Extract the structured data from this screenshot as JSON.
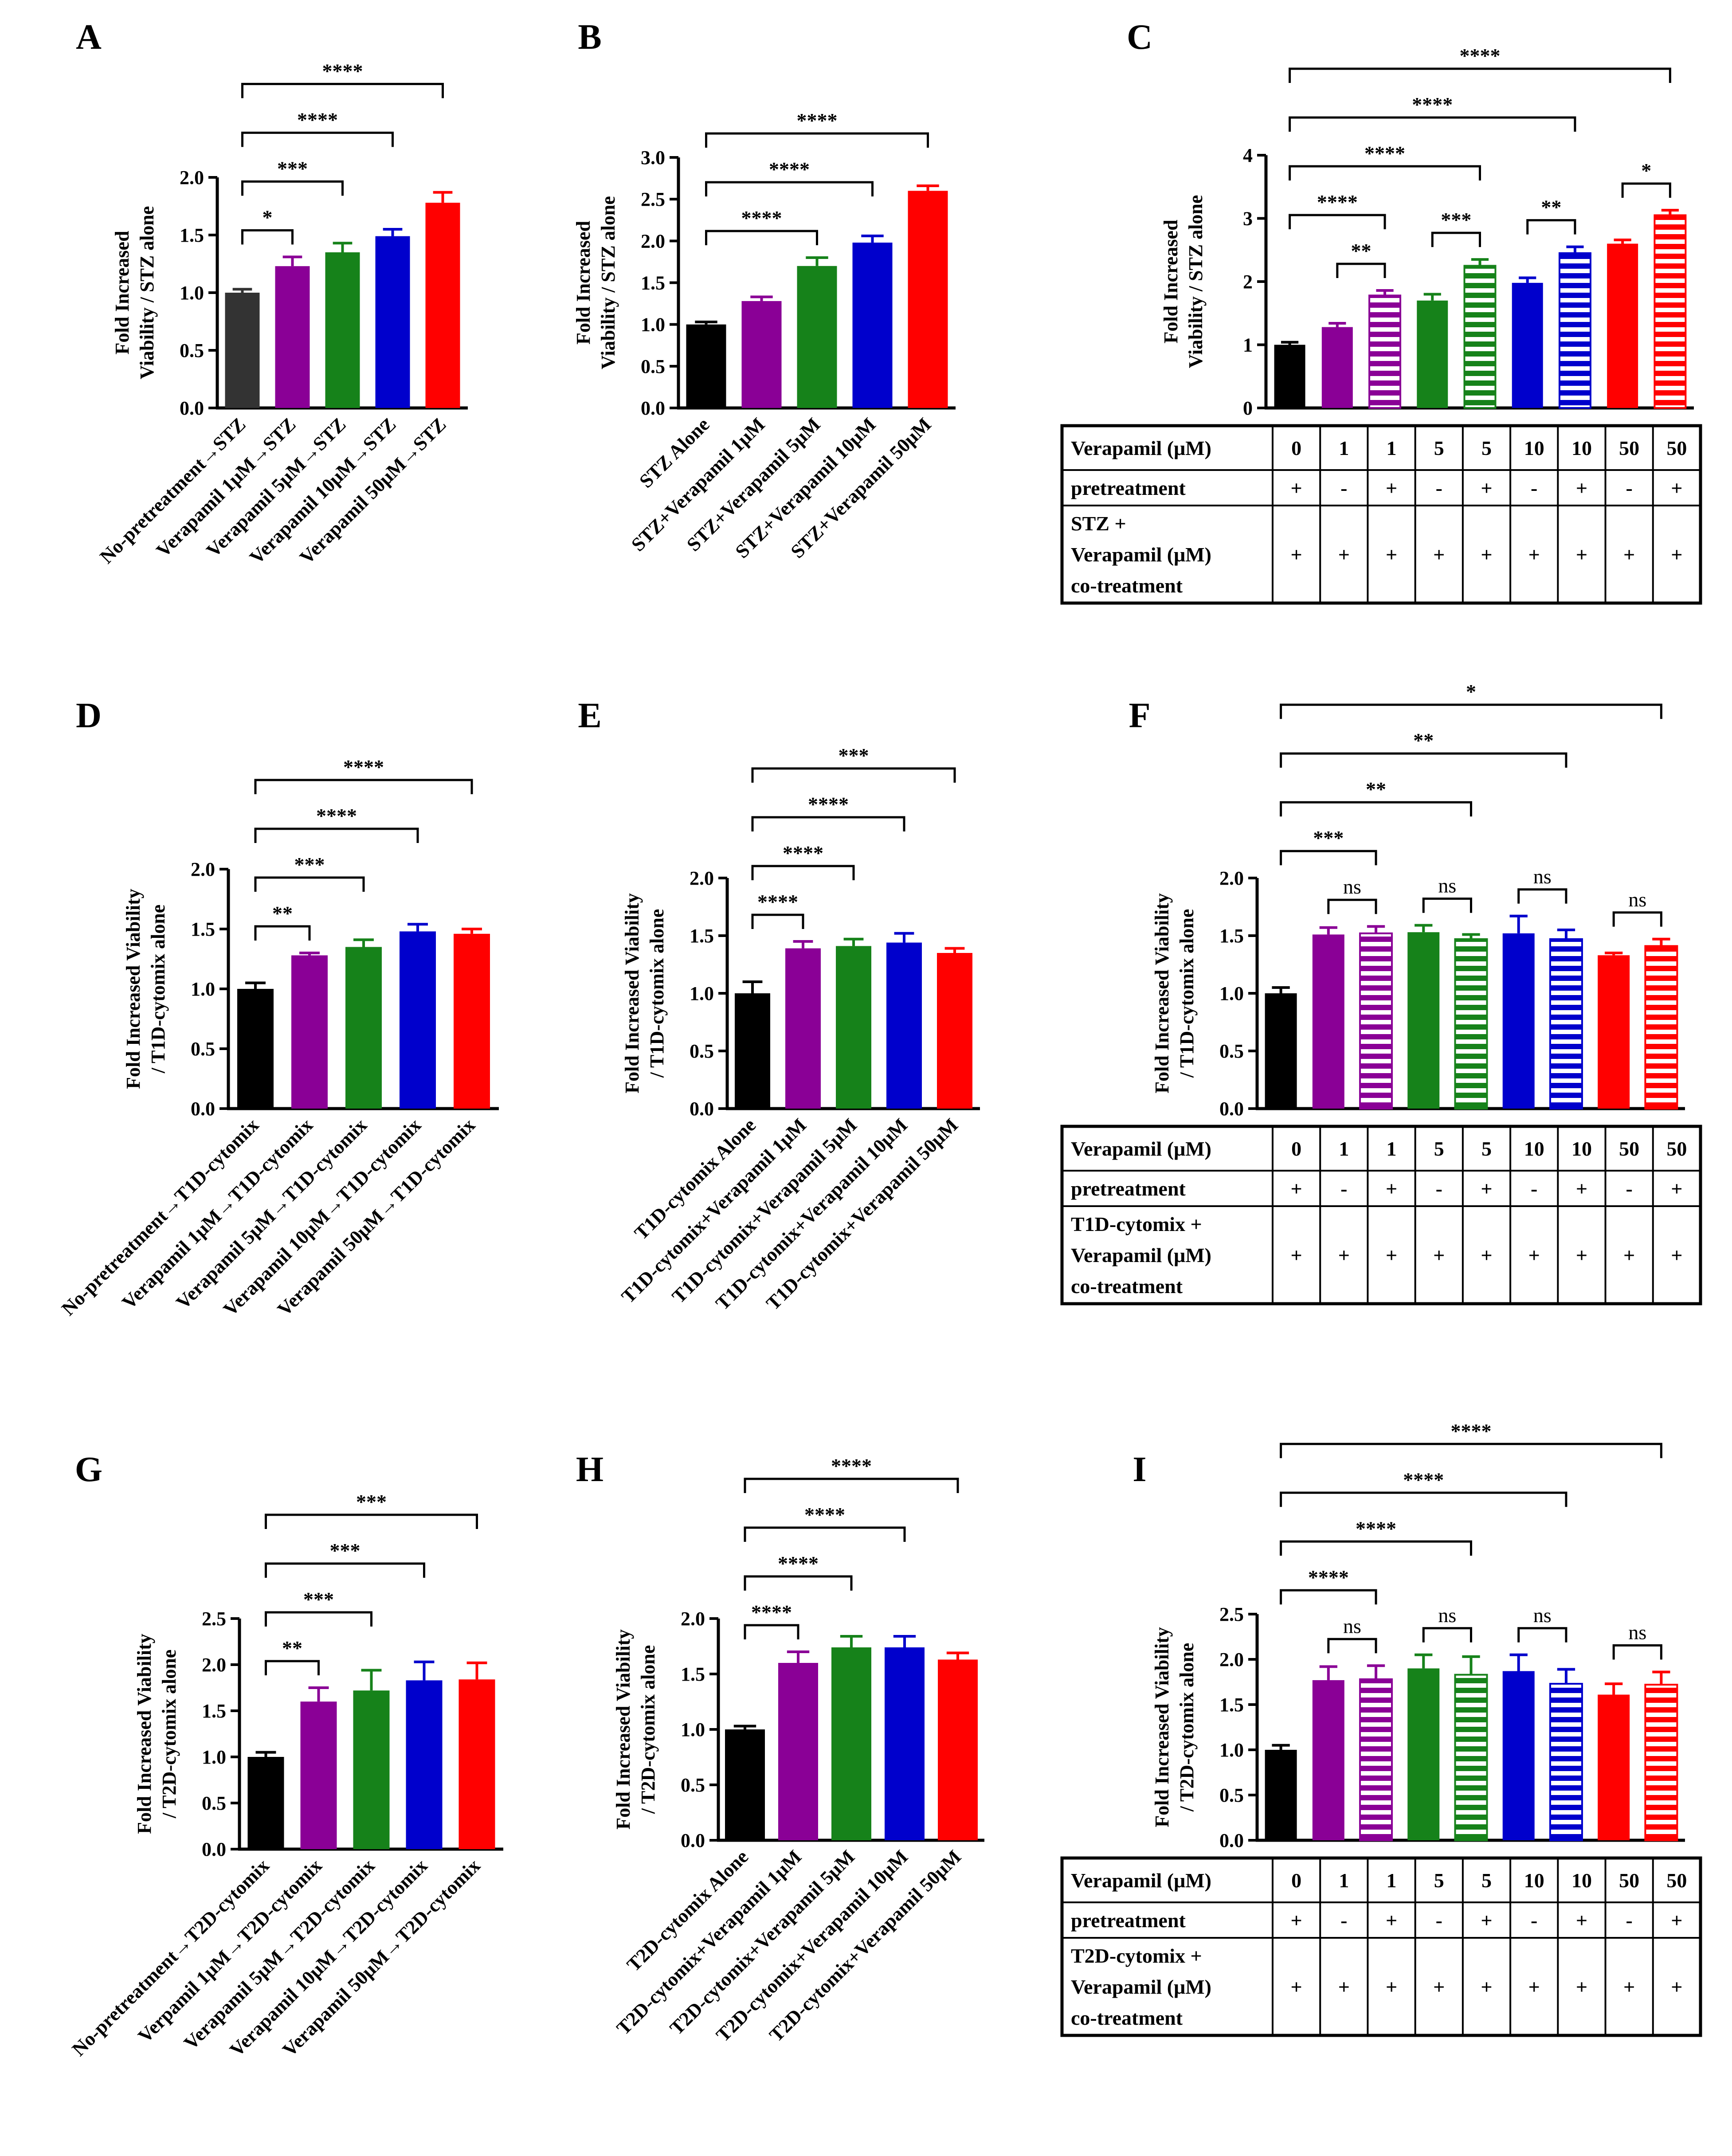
{
  "figure": {
    "description_free": true
  },
  "colors": {
    "black": "#000000",
    "purple": "#8a0096",
    "green": "#16821a",
    "blue": "#0000cc",
    "red": "#ff0000",
    "gray": "#333333"
  },
  "chart_data": [
    {
      "id": "A",
      "label": "A",
      "type": "bar",
      "ylabel": [
        "Fold Increased",
        "Viability / STZ alone"
      ],
      "ylim": [
        0,
        2.0
      ],
      "yticks": [
        "0.0",
        "0.5",
        "1.0",
        "1.5",
        "2.0"
      ],
      "ytick_values": [
        0,
        0.5,
        1,
        1.5,
        2
      ],
      "categories": [
        "No-pretreatment→STZ",
        "Verapamil 1μM→STZ",
        "Verapamil 5μM→STZ",
        "Verapamil 10μM→STZ",
        "Verapamil 50μM→STZ"
      ],
      "values": [
        1.0,
        1.23,
        1.35,
        1.49,
        1.78
      ],
      "errors": [
        0.03,
        0.08,
        0.08,
        0.06,
        0.09
      ],
      "colors": [
        "#333333",
        "#8a0096",
        "#16821a",
        "#0000cc",
        "#ff0000"
      ],
      "striped": [
        false,
        false,
        false,
        false,
        false
      ],
      "brackets": [
        {
          "from": 0,
          "to": 1,
          "label": "*"
        },
        {
          "from": 0,
          "to": 2,
          "label": "***"
        },
        {
          "from": 0,
          "to": 3,
          "label": "****"
        },
        {
          "from": 0,
          "to": 4,
          "label": "****"
        }
      ]
    },
    {
      "id": "B",
      "label": "B",
      "type": "bar",
      "ylabel": [
        "Fold Increased",
        "Viability / STZ alone"
      ],
      "ylim": [
        0,
        3.0
      ],
      "yticks": [
        "0.0",
        "0.5",
        "1.0",
        "1.5",
        "2.0",
        "2.5",
        "3.0"
      ],
      "ytick_values": [
        0,
        0.5,
        1,
        1.5,
        2,
        2.5,
        3
      ],
      "categories": [
        "STZ Alone",
        "STZ+Verapamil 1μM",
        "STZ+Verapamil 5μM",
        "STZ+Verapamil 10μM",
        "STZ+Verapamil 50μM"
      ],
      "values": [
        1.0,
        1.28,
        1.7,
        1.98,
        2.6
      ],
      "errors": [
        0.03,
        0.05,
        0.1,
        0.08,
        0.06
      ],
      "colors": [
        "#000000",
        "#8a0096",
        "#16821a",
        "#0000cc",
        "#ff0000"
      ],
      "striped": [
        false,
        false,
        false,
        false,
        false
      ],
      "brackets": [
        {
          "from": 0,
          "to": 2,
          "label": "****"
        },
        {
          "from": 0,
          "to": 3,
          "label": "****"
        },
        {
          "from": 0,
          "to": 4,
          "label": "****"
        }
      ]
    },
    {
      "id": "C",
      "label": "C",
      "type": "bar",
      "ylabel": [
        "Fold Increased",
        "Viability / STZ alone"
      ],
      "ylim": [
        0,
        4
      ],
      "yticks": [
        "0",
        "1",
        "2",
        "3",
        "4"
      ],
      "ytick_values": [
        0,
        1,
        2,
        3,
        4
      ],
      "categories": [
        "0",
        "1",
        "1",
        "5",
        "5",
        "10",
        "10",
        "50",
        "50"
      ],
      "values": [
        1.0,
        1.28,
        1.78,
        1.7,
        2.25,
        1.98,
        2.45,
        2.6,
        3.05
      ],
      "errors": [
        0.04,
        0.06,
        0.08,
        0.1,
        0.1,
        0.08,
        0.1,
        0.06,
        0.08
      ],
      "colors": [
        "#000000",
        "#8a0096",
        "#8a0096",
        "#16821a",
        "#16821a",
        "#0000cc",
        "#0000cc",
        "#ff0000",
        "#ff0000"
      ],
      "striped": [
        false,
        false,
        true,
        false,
        true,
        false,
        true,
        false,
        true
      ],
      "brackets": [
        {
          "from": 1,
          "to": 2,
          "label": "**"
        },
        {
          "from": 3,
          "to": 4,
          "label": "***"
        },
        {
          "from": 5,
          "to": 6,
          "label": "**"
        },
        {
          "from": 7,
          "to": 8,
          "label": "*"
        },
        {
          "from": 0,
          "to": 2,
          "label": "****"
        },
        {
          "from": 0,
          "to": 4,
          "label": "****"
        },
        {
          "from": 0,
          "to": 6,
          "label": "****"
        },
        {
          "from": 0,
          "to": 8,
          "label": "****"
        }
      ],
      "table": {
        "rows": [
          {
            "header": [
              "Verapamil (μM)"
            ],
            "cells": [
              "0",
              "1",
              "1",
              "5",
              "5",
              "10",
              "10",
              "50",
              "50"
            ]
          },
          {
            "header": [
              "pretreatment"
            ],
            "cells": [
              "+",
              "-",
              "+",
              "-",
              "+",
              "-",
              "+",
              "-",
              "+"
            ]
          },
          {
            "header": [
              "STZ +",
              "Verapamil (μM)",
              "co-treatment"
            ],
            "cells": [
              "+",
              "+",
              "+",
              "+",
              "+",
              "+",
              "+",
              "+",
              "+"
            ]
          }
        ]
      }
    },
    {
      "id": "D",
      "label": "D",
      "type": "bar",
      "ylabel": [
        "Fold Increased Viability",
        "/ T1D-cytomix alone"
      ],
      "ylim": [
        0,
        2.0
      ],
      "yticks": [
        "0.0",
        "0.5",
        "1.0",
        "1.5",
        "2.0"
      ],
      "ytick_values": [
        0,
        0.5,
        1,
        1.5,
        2
      ],
      "categories": [
        "No-pretreatment→T1D-cytomix",
        "Verapamil 1μM→T1D-cytomix",
        "Verapamil 5μM→T1D-cytomix",
        "Verapamil 10μM→T1D-cytomix",
        "Verapamil 50μM→T1D-cytomix"
      ],
      "values": [
        1.0,
        1.28,
        1.35,
        1.48,
        1.46
      ],
      "errors": [
        0.05,
        0.02,
        0.06,
        0.06,
        0.04
      ],
      "colors": [
        "#000000",
        "#8a0096",
        "#16821a",
        "#0000cc",
        "#ff0000"
      ],
      "striped": [
        false,
        false,
        false,
        false,
        false
      ],
      "brackets": [
        {
          "from": 0,
          "to": 1,
          "label": "**"
        },
        {
          "from": 0,
          "to": 2,
          "label": "***"
        },
        {
          "from": 0,
          "to": 3,
          "label": "****"
        },
        {
          "from": 0,
          "to": 4,
          "label": "****"
        }
      ]
    },
    {
      "id": "E",
      "label": "E",
      "type": "bar",
      "ylabel": [
        "Fold Increased Viability",
        "/ T1D-cytomix alone"
      ],
      "ylim": [
        0,
        2.0
      ],
      "yticks": [
        "0.0",
        "0.5",
        "1.0",
        "1.5",
        "2.0"
      ],
      "ytick_values": [
        0,
        0.5,
        1,
        1.5,
        2
      ],
      "categories": [
        "T1D-cytomix Alone",
        "T1D-cytomix+Verapamil 1μM",
        "T1D-cytomix+Verapamil 5μM",
        "T1D-cytomix+Verapamil 10μM",
        "T1D-cytomix+Verapamil 50μM"
      ],
      "values": [
        1.0,
        1.39,
        1.41,
        1.44,
        1.35
      ],
      "errors": [
        0.1,
        0.06,
        0.06,
        0.08,
        0.04
      ],
      "colors": [
        "#000000",
        "#8a0096",
        "#16821a",
        "#0000cc",
        "#ff0000"
      ],
      "striped": [
        false,
        false,
        false,
        false,
        false
      ],
      "brackets": [
        {
          "from": 0,
          "to": 1,
          "label": "****"
        },
        {
          "from": 0,
          "to": 2,
          "label": "****"
        },
        {
          "from": 0,
          "to": 3,
          "label": "****"
        },
        {
          "from": 0,
          "to": 4,
          "label": "***"
        }
      ]
    },
    {
      "id": "F",
      "label": "F",
      "type": "bar",
      "ylabel": [
        "Fold Increased Viability",
        "/ T1D-cytomix alone"
      ],
      "ylim": [
        0,
        2.0
      ],
      "yticks": [
        "0.0",
        "0.5",
        "1.0",
        "1.5",
        "2.0"
      ],
      "ytick_values": [
        0,
        0.5,
        1,
        1.5,
        2
      ],
      "categories": [
        "0",
        "1",
        "1",
        "5",
        "5",
        "10",
        "10",
        "50",
        "50"
      ],
      "values": [
        1.0,
        1.51,
        1.52,
        1.53,
        1.47,
        1.52,
        1.47,
        1.33,
        1.41
      ],
      "errors": [
        0.05,
        0.06,
        0.06,
        0.06,
        0.04,
        0.15,
        0.08,
        0.02,
        0.06
      ],
      "colors": [
        "#000000",
        "#8a0096",
        "#8a0096",
        "#16821a",
        "#16821a",
        "#0000cc",
        "#0000cc",
        "#ff0000",
        "#ff0000"
      ],
      "striped": [
        false,
        false,
        true,
        false,
        true,
        false,
        true,
        false,
        true
      ],
      "brackets": [
        {
          "from": 1,
          "to": 2,
          "label": "ns",
          "ns": true
        },
        {
          "from": 3,
          "to": 4,
          "label": "ns",
          "ns": true
        },
        {
          "from": 5,
          "to": 6,
          "label": "ns",
          "ns": true
        },
        {
          "from": 7,
          "to": 8,
          "label": "ns",
          "ns": true
        },
        {
          "from": 0,
          "to": 2,
          "label": "***"
        },
        {
          "from": 0,
          "to": 4,
          "label": "**"
        },
        {
          "from": 0,
          "to": 6,
          "label": "**"
        },
        {
          "from": 0,
          "to": 8,
          "label": "*"
        }
      ],
      "table": {
        "rows": [
          {
            "header": [
              "Verapamil (μM)"
            ],
            "cells": [
              "0",
              "1",
              "1",
              "5",
              "5",
              "10",
              "10",
              "50",
              "50"
            ]
          },
          {
            "header": [
              "pretreatment"
            ],
            "cells": [
              "+",
              "-",
              "+",
              "-",
              "+",
              "-",
              "+",
              "-",
              "+"
            ]
          },
          {
            "header": [
              "T1D-cytomix +",
              "Verapamil (μM)",
              "co-treatment"
            ],
            "cells": [
              "+",
              "+",
              "+",
              "+",
              "+",
              "+",
              "+",
              "+",
              "+"
            ]
          }
        ]
      }
    },
    {
      "id": "G",
      "label": "G",
      "type": "bar",
      "ylabel": [
        "Fold Increased Viability",
        "/ T2D-cytomix alone"
      ],
      "ylim": [
        0,
        2.5
      ],
      "yticks": [
        "0.0",
        "0.5",
        "1.0",
        "1.5",
        "2.0",
        "2.5"
      ],
      "ytick_values": [
        0,
        0.5,
        1,
        1.5,
        2,
        2.5
      ],
      "categories": [
        "No-pretreatment→T2D-cytomix",
        "Verpamil 1μM→T2D-cytomix",
        "Verapamil 5μM→T2D-cytomix",
        "Verapamil 10μM→T2D-cytomix",
        "Verapamil 50μM→T2D-cytomix"
      ],
      "values": [
        1.0,
        1.6,
        1.72,
        1.83,
        1.84
      ],
      "errors": [
        0.05,
        0.15,
        0.22,
        0.2,
        0.18
      ],
      "colors": [
        "#000000",
        "#8a0096",
        "#16821a",
        "#0000cc",
        "#ff0000"
      ],
      "striped": [
        false,
        false,
        false,
        false,
        false
      ],
      "brackets": [
        {
          "from": 0,
          "to": 1,
          "label": "**"
        },
        {
          "from": 0,
          "to": 2,
          "label": "***"
        },
        {
          "from": 0,
          "to": 3,
          "label": "***"
        },
        {
          "from": 0,
          "to": 4,
          "label": "***"
        }
      ]
    },
    {
      "id": "H",
      "label": "H",
      "type": "bar",
      "ylabel": [
        "Fold Increased Viability",
        "/ T2D-cytomix alone"
      ],
      "ylim": [
        0,
        2.0
      ],
      "yticks": [
        "0.0",
        "0.5",
        "1.0",
        "1.5",
        "2.0"
      ],
      "ytick_values": [
        0,
        0.5,
        1,
        1.5,
        2
      ],
      "categories": [
        "T2D-cytomix Alone",
        "T2D-cytomix+Verapamil 1μM",
        "T2D-cytomix+Verapamil 5μM",
        "T2D-cytomix+Verapamil 10μM",
        "T2D-cytomix+Verapamil 50μM"
      ],
      "values": [
        1.0,
        1.6,
        1.74,
        1.74,
        1.63
      ],
      "errors": [
        0.03,
        0.1,
        0.1,
        0.1,
        0.06
      ],
      "colors": [
        "#000000",
        "#8a0096",
        "#16821a",
        "#0000cc",
        "#ff0000"
      ],
      "striped": [
        false,
        false,
        false,
        false,
        false
      ],
      "brackets": [
        {
          "from": 0,
          "to": 1,
          "label": "****"
        },
        {
          "from": 0,
          "to": 2,
          "label": "****"
        },
        {
          "from": 0,
          "to": 3,
          "label": "****"
        },
        {
          "from": 0,
          "to": 4,
          "label": "****"
        }
      ]
    },
    {
      "id": "I",
      "label": "I",
      "type": "bar",
      "ylabel": [
        "Fold Increased Viability",
        "/ T2D-cytomix alone"
      ],
      "ylim": [
        0,
        2.5
      ],
      "yticks": [
        "0.0",
        "0.5",
        "1.0",
        "1.5",
        "2.0",
        "2.5"
      ],
      "ytick_values": [
        0,
        0.5,
        1,
        1.5,
        2,
        2.5
      ],
      "categories": [
        "0",
        "1",
        "1",
        "5",
        "5",
        "10",
        "10",
        "50",
        "50"
      ],
      "values": [
        1.0,
        1.77,
        1.78,
        1.9,
        1.83,
        1.87,
        1.73,
        1.61,
        1.72
      ],
      "errors": [
        0.05,
        0.15,
        0.15,
        0.15,
        0.2,
        0.18,
        0.16,
        0.12,
        0.14
      ],
      "colors": [
        "#000000",
        "#8a0096",
        "#8a0096",
        "#16821a",
        "#16821a",
        "#0000cc",
        "#0000cc",
        "#ff0000",
        "#ff0000"
      ],
      "striped": [
        false,
        false,
        true,
        false,
        true,
        false,
        true,
        false,
        true
      ],
      "brackets": [
        {
          "from": 1,
          "to": 2,
          "label": "ns",
          "ns": true
        },
        {
          "from": 3,
          "to": 4,
          "label": "ns",
          "ns": true
        },
        {
          "from": 5,
          "to": 6,
          "label": "ns",
          "ns": true
        },
        {
          "from": 7,
          "to": 8,
          "label": "ns",
          "ns": true
        },
        {
          "from": 0,
          "to": 2,
          "label": "****"
        },
        {
          "from": 0,
          "to": 4,
          "label": "****"
        },
        {
          "from": 0,
          "to": 6,
          "label": "****"
        },
        {
          "from": 0,
          "to": 8,
          "label": "****"
        }
      ],
      "table": {
        "rows": [
          {
            "header": [
              "Verapamil (μM)"
            ],
            "cells": [
              "0",
              "1",
              "1",
              "5",
              "5",
              "10",
              "10",
              "50",
              "50"
            ]
          },
          {
            "header": [
              "pretreatment"
            ],
            "cells": [
              "+",
              "-",
              "+",
              "-",
              "+",
              "-",
              "+",
              "-",
              "+"
            ]
          },
          {
            "header": [
              "T2D-cytomix +",
              "Verapamil (μM)",
              "co-treatment"
            ],
            "cells": [
              "+",
              "+",
              "+",
              "+",
              "+",
              "+",
              "+",
              "+",
              "+"
            ]
          }
        ]
      }
    }
  ]
}
